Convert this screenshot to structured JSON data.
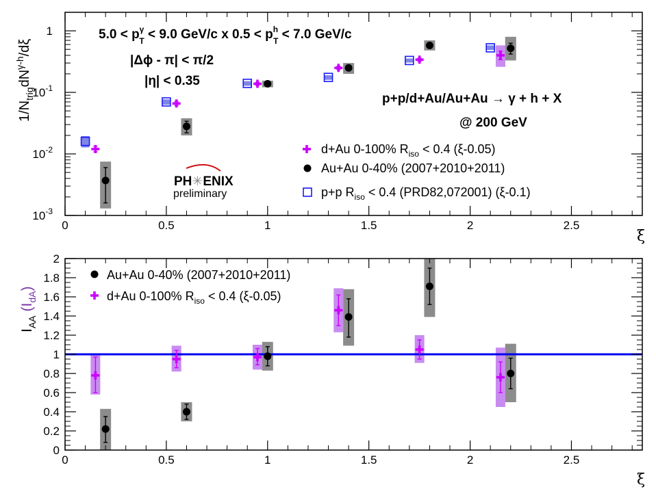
{
  "colors": {
    "magenta": "#cc00ff",
    "magenta_sys": "#c88cf0",
    "black": "#000000",
    "gray_sys": "#8c8c8c",
    "blue": "#1a1aff",
    "blue_fill": "#7f86e6",
    "ref_line": "#0000ee",
    "ida_label": "#7733aa"
  },
  "chart_data": [
    {
      "type": "scatter",
      "panel": "top",
      "yscale": "log",
      "xlim": [
        0,
        2.85
      ],
      "ylim": [
        0.001,
        2
      ],
      "xlabel": "ξ",
      "ylabel_prefix": "1/N",
      "ylabel_sub": "trig",
      "ylabel_mid": "dN",
      "ylabel_sup": "γ-h",
      "ylabel_suffix": "/dξ",
      "x_ticks": [
        0,
        0.5,
        1,
        1.5,
        2,
        2.5
      ],
      "x_tick_labels": [
        "0",
        "0.5",
        "1",
        "1.5",
        "2",
        "2.5"
      ],
      "y_ticks": [
        0.001,
        0.01,
        0.1,
        1
      ],
      "y_tick_bases": [
        "10",
        "10",
        "10",
        "1"
      ],
      "y_tick_exps": [
        "-3",
        "-2",
        "-1",
        ""
      ],
      "annotations": {
        "kin_a": "5.0 < p",
        "kin_a_sup": "γ",
        "kin_a_sub": "T",
        "kin_b": " < 9.0 GeV/c x 0.5 < p",
        "kin_b_sup": "h",
        "kin_b_sub": "T",
        "kin_c": " < 7.0 GeV/c",
        "dphi": "|Δϕ - π| < π/2",
        "eta": "|η| < 0.35",
        "process": "p+p/d+Au/Au+Au → γ  + h + X",
        "energy": "@ 200 GeV",
        "logo_top": "PH",
        "logo_star": "✳",
        "logo_end": "ENIX",
        "logo_bottom": "preliminary"
      },
      "legend": [
        {
          "prefix": "d+Au 0-100% R",
          "sub": "iso",
          "suffix": " < 0.4 (ξ-0.05)",
          "marker": "cross"
        },
        {
          "prefix": "Au+Au 0-40% (2007+2010+2011)",
          "sub": "",
          "suffix": "",
          "marker": "circle"
        },
        {
          "prefix": "p+p R",
          "sub": "iso",
          "suffix": " < 0.4 (PRD82,072001) (ξ-0.1)",
          "marker": "square"
        }
      ],
      "series": [
        {
          "name": "d+Au 0-100% Riso < 0.4 (ξ-0.05)",
          "marker": "cross",
          "points": [
            {
              "x": 0.15,
              "y": 0.012,
              "stat_lo": 0.0108,
              "stat_hi": 0.0133
            },
            {
              "x": 0.55,
              "y": 0.066,
              "stat_lo": 0.061,
              "stat_hi": 0.071
            },
            {
              "x": 0.95,
              "y": 0.138,
              "stat_lo": 0.13,
              "stat_hi": 0.146
            },
            {
              "x": 1.35,
              "y": 0.25,
              "stat_lo": 0.235,
              "stat_hi": 0.265
            },
            {
              "x": 1.75,
              "y": 0.34,
              "stat_lo": 0.32,
              "stat_hi": 0.36
            },
            {
              "x": 2.15,
              "y": 0.4,
              "stat_lo": 0.34,
              "stat_hi": 0.47,
              "sys_lo": 0.26,
              "sys_hi": 0.58
            }
          ]
        },
        {
          "name": "Au+Au 0-40% (2007+2010+2011)",
          "marker": "circle",
          "points": [
            {
              "x": 0.2,
              "y": 0.0037,
              "stat_lo": 0.0016,
              "stat_hi": 0.006,
              "sys_lo": 0.0013,
              "sys_hi": 0.0075
            },
            {
              "x": 0.6,
              "y": 0.028,
              "stat_lo": 0.022,
              "stat_hi": 0.034,
              "sys_lo": 0.02,
              "sys_hi": 0.038
            },
            {
              "x": 1.0,
              "y": 0.138,
              "stat_lo": 0.128,
              "stat_hi": 0.148,
              "sys_lo": 0.121,
              "sys_hi": 0.155
            },
            {
              "x": 1.4,
              "y": 0.25,
              "stat_lo": 0.225,
              "stat_hi": 0.275,
              "sys_lo": 0.2,
              "sys_hi": 0.3
            },
            {
              "x": 1.8,
              "y": 0.58,
              "stat_lo": 0.53,
              "stat_hi": 0.63,
              "sys_lo": 0.48,
              "sys_hi": 0.7
            },
            {
              "x": 2.2,
              "y": 0.52,
              "stat_lo": 0.42,
              "stat_hi": 0.63,
              "sys_lo": 0.33,
              "sys_hi": 0.8
            }
          ]
        },
        {
          "name": "p+p Riso < 0.4 (PRD82,072001) (ξ-0.1)",
          "marker": "square",
          "points": [
            {
              "x": 0.1,
              "y": 0.016,
              "stat_lo": 0.013,
              "stat_hi": 0.019,
              "sys_lo": 0.0128,
              "sys_hi": 0.0195
            },
            {
              "x": 0.5,
              "y": 0.07,
              "stat_lo": 0.066,
              "stat_hi": 0.074,
              "sys_lo": 0.063,
              "sys_hi": 0.077
            },
            {
              "x": 0.9,
              "y": 0.14,
              "stat_lo": 0.133,
              "stat_hi": 0.147,
              "sys_lo": 0.128,
              "sys_hi": 0.152
            },
            {
              "x": 1.3,
              "y": 0.175,
              "stat_lo": 0.167,
              "stat_hi": 0.183,
              "sys_lo": 0.16,
              "sys_hi": 0.19
            },
            {
              "x": 1.7,
              "y": 0.33,
              "stat_lo": 0.315,
              "stat_hi": 0.345,
              "sys_lo": 0.305,
              "sys_hi": 0.355
            },
            {
              "x": 2.1,
              "y": 0.53,
              "stat_lo": 0.5,
              "stat_hi": 0.56,
              "sys_lo": 0.49,
              "sys_hi": 0.58
            }
          ]
        }
      ]
    },
    {
      "type": "scatter",
      "panel": "bottom",
      "yscale": "linear",
      "xlim": [
        0,
        2.85
      ],
      "ylim": [
        0,
        2
      ],
      "xlabel": "ξ",
      "ylabel_main": "I",
      "ylabel_main_sub": "AA",
      "ylabel_paren": "(I",
      "ylabel_paren_sub": "dA",
      "ylabel_paren_end": ")",
      "reference_line": 1,
      "x_ticks": [
        0,
        0.5,
        1,
        1.5,
        2,
        2.5
      ],
      "x_tick_labels": [
        "0",
        "0.5",
        "1",
        "1.5",
        "2",
        "2.5"
      ],
      "y_ticks": [
        0,
        0.2,
        0.4,
        0.6,
        0.8,
        1,
        1.2,
        1.4,
        1.6,
        1.8,
        2
      ],
      "y_tick_labels": [
        "0",
        "0.2",
        "0.4",
        "0.6",
        "0.8",
        "1",
        "1.2",
        "1.4",
        "1.6",
        "1.8",
        "2"
      ],
      "legend": [
        {
          "prefix": "Au+Au 0-40% (2007+2010+2011)",
          "sub": "",
          "suffix": "",
          "marker": "circle"
        },
        {
          "prefix": "d+Au 0-100% R",
          "sub": "iso",
          "suffix": " < 0.4 (ξ-0.05)",
          "marker": "cross"
        }
      ],
      "series": [
        {
          "name": "Au+Au 0-40% (2007+2010+2011)",
          "marker": "circle",
          "points": [
            {
              "x": 0.2,
              "y": 0.22,
              "stat_lo": 0.08,
              "stat_hi": 0.35,
              "sys_lo": 0.0,
              "sys_hi": 0.43
            },
            {
              "x": 0.6,
              "y": 0.4,
              "stat_lo": 0.32,
              "stat_hi": 0.48,
              "sys_lo": 0.3,
              "sys_hi": 0.5
            },
            {
              "x": 1.0,
              "y": 0.98,
              "stat_lo": 0.88,
              "stat_hi": 1.08,
              "sys_lo": 0.83,
              "sys_hi": 1.13
            },
            {
              "x": 1.4,
              "y": 1.39,
              "stat_lo": 1.18,
              "stat_hi": 1.58,
              "sys_lo": 1.09,
              "sys_hi": 1.68
            },
            {
              "x": 1.8,
              "y": 1.71,
              "stat_lo": 1.52,
              "stat_hi": 1.9,
              "sys_lo": 1.39,
              "sys_hi": 2.0
            },
            {
              "x": 2.2,
              "y": 0.8,
              "stat_lo": 0.64,
              "stat_hi": 0.96,
              "sys_lo": 0.5,
              "sys_hi": 1.11
            }
          ]
        },
        {
          "name": "d+Au 0-100% Riso < 0.4 (ξ-0.05)",
          "marker": "cross",
          "points": [
            {
              "x": 0.15,
              "y": 0.78,
              "stat_lo": 0.6,
              "stat_hi": 0.97,
              "sys_lo": 0.58,
              "sys_hi": 0.99
            },
            {
              "x": 0.55,
              "y": 0.95,
              "stat_lo": 0.86,
              "stat_hi": 1.04,
              "sys_lo": 0.82,
              "sys_hi": 1.09
            },
            {
              "x": 0.95,
              "y": 0.97,
              "stat_lo": 0.89,
              "stat_hi": 1.06,
              "sys_lo": 0.84,
              "sys_hi": 1.1
            },
            {
              "x": 1.35,
              "y": 1.46,
              "stat_lo": 1.3,
              "stat_hi": 1.62,
              "sys_lo": 1.23,
              "sys_hi": 1.69
            },
            {
              "x": 1.75,
              "y": 1.05,
              "stat_lo": 0.95,
              "stat_hi": 1.15,
              "sys_lo": 0.91,
              "sys_hi": 1.2
            },
            {
              "x": 2.15,
              "y": 0.76,
              "stat_lo": 0.6,
              "stat_hi": 0.92,
              "sys_lo": 0.45,
              "sys_hi": 1.07
            }
          ]
        }
      ]
    }
  ]
}
